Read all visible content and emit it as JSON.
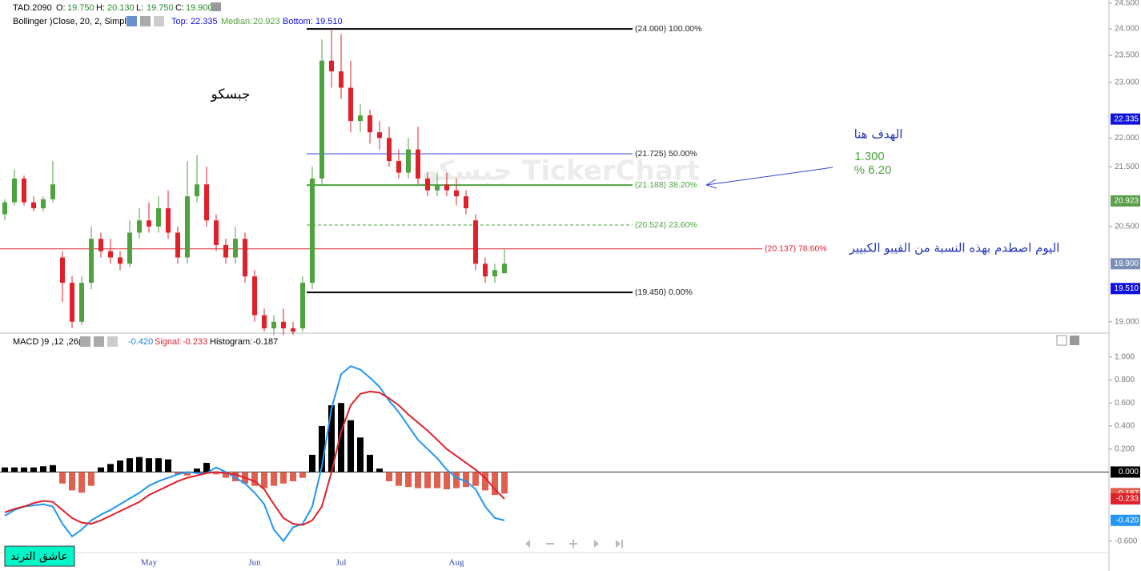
{
  "chart_data": [
    {
      "type": "candlestick",
      "header": {
        "symbol": "TAD.2090",
        "o_label": "O:",
        "o": "19.750",
        "h_label": "H:",
        "h": "20.130",
        "l_label": "L:",
        "l": "19.750",
        "c_label": "C:",
        "c": "19.900",
        "indicator": "Bollinger )Close, 20, 2, Simple(",
        "top_label": "Top:",
        "top": "22.335",
        "median_label": "Median:",
        "median": "20.923",
        "bottom_label": "Bottom:",
        "bottom": "19.510"
      },
      "categories": [
        null,
        null,
        null,
        null,
        null,
        null,
        null,
        null,
        null,
        null,
        null,
        null,
        null,
        null,
        null,
        "May",
        null,
        null,
        null,
        null,
        null,
        null,
        null,
        null,
        null,
        null,
        "Jun",
        null,
        null,
        null,
        null,
        null,
        null,
        null,
        null,
        "Jul",
        null,
        null,
        null,
        null,
        null,
        null,
        null,
        null,
        null,
        null,
        null,
        "Aug",
        null,
        null,
        null,
        null,
        null
      ],
      "open": [
        20.7,
        20.9,
        21.3,
        20.9,
        20.8,
        20.95,
        20.0,
        19.6,
        19.0,
        19.6,
        20.3,
        20.1,
        20.0,
        19.9,
        20.4,
        20.6,
        20.5,
        20.8,
        20.4,
        20.0,
        21.0,
        21.2,
        20.6,
        20.2,
        20.0,
        20.3,
        19.7,
        19.1,
        18.9,
        19.0,
        18.9,
        18.9,
        19.6,
        21.3,
        23.4,
        23.2,
        22.9,
        22.3,
        22.4,
        22.1,
        22.0,
        21.6,
        21.4,
        21.8,
        21.3,
        21.1,
        21.2,
        21.1,
        21.0,
        20.6,
        19.9,
        19.7,
        19.75
      ],
      "high": [
        20.95,
        21.45,
        21.35,
        21.0,
        21.0,
        21.6,
        20.1,
        19.7,
        19.7,
        20.5,
        20.4,
        20.3,
        20.1,
        20.6,
        20.8,
        20.9,
        21.0,
        21.1,
        20.5,
        21.6,
        21.7,
        21.5,
        20.7,
        20.3,
        20.5,
        20.4,
        19.8,
        19.2,
        19.1,
        19.2,
        19.0,
        19.7,
        21.5,
        23.8,
        24.0,
        23.9,
        23.4,
        22.6,
        22.5,
        22.3,
        22.2,
        21.8,
        22.0,
        22.2,
        21.4,
        21.4,
        21.4,
        21.3,
        21.1,
        20.7,
        20.0,
        19.9,
        20.13
      ],
      "low": [
        20.6,
        20.85,
        20.85,
        20.75,
        20.75,
        20.9,
        19.3,
        18.9,
        18.95,
        19.5,
        20.0,
        19.9,
        19.8,
        19.85,
        20.3,
        20.4,
        20.4,
        20.3,
        19.9,
        19.9,
        20.9,
        20.5,
        20.1,
        19.9,
        19.9,
        19.6,
        19.0,
        18.85,
        18.8,
        18.8,
        18.8,
        18.85,
        19.5,
        21.2,
        22.9,
        22.7,
        22.1,
        22.1,
        21.9,
        21.8,
        21.5,
        21.3,
        21.3,
        21.2,
        21.0,
        21.0,
        21.0,
        20.85,
        20.7,
        19.8,
        19.6,
        19.6,
        19.75
      ],
      "close": [
        20.9,
        21.3,
        20.9,
        20.8,
        20.95,
        21.2,
        19.6,
        19.0,
        19.6,
        20.3,
        20.1,
        20.0,
        19.9,
        20.4,
        20.6,
        20.5,
        20.8,
        20.4,
        20.0,
        21.0,
        21.2,
        20.6,
        20.2,
        20.0,
        20.3,
        19.7,
        19.1,
        18.9,
        19.0,
        18.9,
        18.85,
        19.6,
        21.3,
        23.4,
        23.2,
        22.9,
        22.3,
        22.4,
        22.1,
        22.0,
        21.6,
        21.4,
        21.8,
        21.3,
        21.1,
        21.2,
        21.1,
        21.0,
        20.8,
        19.9,
        19.7,
        19.8,
        19.9
      ],
      "up_color": "#4ea33f",
      "down_color": "#e0202a",
      "log_scale": true,
      "ylim": [
        18.84,
        24.56
      ],
      "yticks": [
        {
          "value": 24.5,
          "label": "24.500"
        },
        {
          "value": 24,
          "label": "24.000"
        },
        {
          "value": 23.5,
          "label": "23.500"
        },
        {
          "value": 23,
          "label": "23.000"
        },
        {
          "value": 22,
          "label": "22.000"
        },
        {
          "value": 21.5,
          "label": "21.500"
        },
        {
          "value": 20.5,
          "label": "20.500"
        },
        {
          "value": 19,
          "label": "19.000"
        }
      ],
      "fib_levels": [
        {
          "value": 24,
          "label": "(24.000) 100.00%",
          "color": "#000000"
        },
        {
          "value": 21.725,
          "label": "(21.725) 50.00%",
          "color": "#3344dd"
        },
        {
          "value": 21.188,
          "label": "(21.188) 38.20%",
          "color": "#4ea33f"
        },
        {
          "value": 20.524,
          "label": "(20.524) 23.60%",
          "color": "#4ea33f",
          "dashed": true
        },
        {
          "value": 20.137,
          "label": "(20.137) 78.60%",
          "color": "#e0202a"
        },
        {
          "value": 19.45,
          "label": "(19.450) 0.00%",
          "color": "#000000"
        }
      ],
      "price_labels": [
        {
          "value": 22.335,
          "label": "22.335",
          "color": "#1010e0"
        },
        {
          "value": 20.923,
          "label": "20.923",
          "color": "#5a9e48"
        },
        {
          "value": 19.9,
          "label": "19.900",
          "color": "#7a8fb8"
        },
        {
          "value": 19.51,
          "label": "19.510",
          "color": "#1010e0"
        }
      ],
      "annotations": {
        "name": "جبسكو",
        "target": "الهدف هنا",
        "target_value": "1.300",
        "target_pct": "% 6.20",
        "note": "اليوم اصطدم بهذه النسبة من الفيبو الكبيير",
        "watermark": "جبسكو TickerChart",
        "author": "عاشق الترند"
      }
    },
    {
      "type": "macd",
      "header": {
        "name": "MACD )9 ,12 ,26(",
        "macd": "-0.420",
        "signal_label": "Signal:",
        "signal": "-0.233",
        "histogram_label": "Histogram:",
        "histogram": "-0.187"
      },
      "histogram": [
        0.04,
        0.04,
        0.04,
        0.04,
        0.05,
        0.06,
        -0.1,
        -0.16,
        -0.18,
        -0.12,
        0.04,
        0.07,
        0.1,
        0.12,
        0.13,
        0.12,
        0.12,
        0.11,
        -0.02,
        -0.03,
        0.03,
        0.08,
        -0.02,
        -0.05,
        -0.08,
        -0.1,
        -0.12,
        -0.14,
        -0.12,
        -0.1,
        -0.08,
        -0.05,
        0.15,
        0.4,
        0.58,
        0.6,
        0.45,
        0.3,
        0.15,
        0.03,
        -0.08,
        -0.12,
        -0.13,
        -0.14,
        -0.14,
        -0.14,
        -0.15,
        -0.14,
        -0.13,
        -0.12,
        -0.16,
        -0.2,
        -0.187
      ],
      "series": [
        {
          "color": "#2196f3",
          "values": [
            -0.38,
            -0.33,
            -0.3,
            -0.29,
            -0.28,
            -0.3,
            -0.45,
            -0.56,
            -0.5,
            -0.42,
            -0.37,
            -0.33,
            -0.28,
            -0.23,
            -0.18,
            -0.12,
            -0.08,
            -0.05,
            -0.02,
            0.0,
            -0.01,
            -0.01,
            0.04,
            0.0,
            -0.05,
            -0.1,
            -0.18,
            -0.28,
            -0.5,
            -0.6,
            -0.48,
            -0.45,
            -0.3,
            0.05,
            0.55,
            0.85,
            0.92,
            0.89,
            0.82,
            0.74,
            0.62,
            0.52,
            0.4,
            0.28,
            0.2,
            0.12,
            0.02,
            -0.05,
            -0.08,
            -0.15,
            -0.3,
            -0.4,
            -0.42
          ]
        },
        {
          "color": "#e0202a",
          "values": [
            -0.35,
            -0.32,
            -0.3,
            -0.27,
            -0.25,
            -0.26,
            -0.33,
            -0.4,
            -0.44,
            -0.45,
            -0.42,
            -0.38,
            -0.34,
            -0.3,
            -0.26,
            -0.2,
            -0.16,
            -0.12,
            -0.08,
            -0.05,
            -0.03,
            -0.01,
            0.0,
            -0.01,
            -0.02,
            -0.05,
            -0.08,
            -0.15,
            -0.28,
            -0.4,
            -0.45,
            -0.46,
            -0.42,
            -0.3,
            0.0,
            0.35,
            0.58,
            0.68,
            0.7,
            0.69,
            0.64,
            0.58,
            0.5,
            0.43,
            0.36,
            0.28,
            0.2,
            0.14,
            0.08,
            0.02,
            -0.05,
            -0.15,
            -0.233
          ]
        }
      ],
      "hist_up_color": "#000000",
      "hist_down_color": "#e06050",
      "ylim": [
        -0.7,
        1.2
      ],
      "yticks": [
        {
          "value": 1,
          "label": "1.000"
        },
        {
          "value": 0.8,
          "label": "0.800"
        },
        {
          "value": 0.6,
          "label": "0.600"
        },
        {
          "value": 0.4,
          "label": "0.400"
        },
        {
          "value": 0.2,
          "label": "0.200"
        },
        {
          "value": -0.6,
          "label": "-0.600"
        }
      ],
      "value_labels": [
        {
          "value": 0,
          "label": "0.000",
          "color": "#000000"
        },
        {
          "value": -0.187,
          "label": "-0.187",
          "color": "#e06050"
        },
        {
          "value": -0.233,
          "label": "-0.233",
          "color": "#e0202a"
        },
        {
          "value": -0.42,
          "label": "-0.420",
          "color": "#2196f3"
        }
      ]
    }
  ]
}
